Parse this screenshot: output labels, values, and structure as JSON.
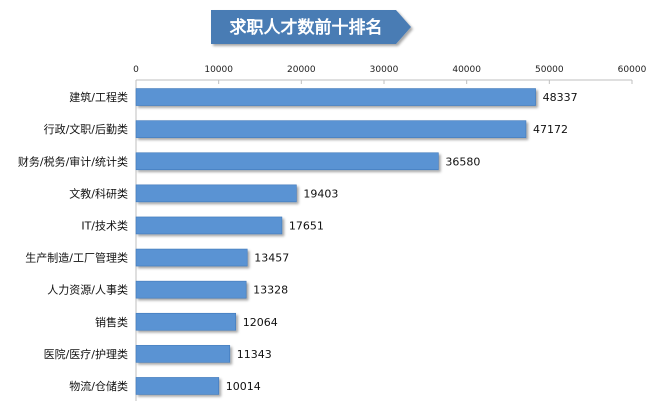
{
  "colors": {
    "banner": "#4a7bb4",
    "banner_dark": "#2f5f97",
    "bar": "#5a93d3",
    "bar_edge": "#3f78ba",
    "axis": "#bfbfbf"
  },
  "chart_data": {
    "type": "bar",
    "orientation": "horizontal",
    "title": "求职人才数前十排名",
    "xlim": [
      0,
      60000
    ],
    "x_ticks": [
      "0",
      "10000",
      "20000",
      "30000",
      "40000",
      "50000",
      "60000"
    ],
    "x_tick_values": [
      0,
      10000,
      20000,
      30000,
      40000,
      50000,
      60000
    ],
    "axis_position": "top",
    "grid": false,
    "categories": [
      "建筑/工程类",
      "行政/文职/后勤类",
      "财务/税务/审计/统计类",
      "文教/科研类",
      "IT/技术类",
      "生产制造/工厂管理类",
      "人力资源/人事类",
      "销售类",
      "医院/医疗/护理类",
      "物流/仓储类"
    ],
    "values": [
      48337,
      47172,
      36580,
      19403,
      17651,
      13457,
      13328,
      12064,
      11343,
      10014
    ],
    "value_labels": [
      "48337",
      "47172",
      "36580",
      "19403",
      "17651",
      "13457",
      "13328",
      "12064",
      "11343",
      "10014"
    ]
  }
}
